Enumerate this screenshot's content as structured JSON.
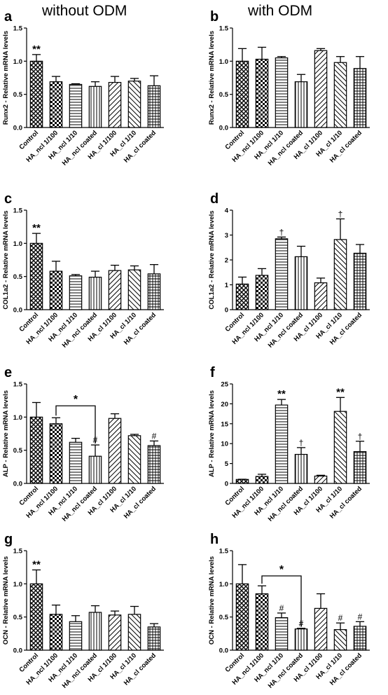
{
  "column_titles": {
    "left": "without ODM",
    "right": "with ODM"
  },
  "categories": [
    "Control",
    "HA_ncl 1/100",
    "HA_ncl 1/10",
    "HA_ncl coated",
    "HA_cl 1/100",
    "HA_cl 1/10",
    "HA_cl coated"
  ],
  "chart_data": [
    {
      "type": "bar",
      "panel": "a",
      "ylabel": "Runx2 - Relative mRNA levels",
      "ylim": [
        0,
        1.5
      ],
      "yticks": [
        "0.0",
        "0.5",
        "1.0",
        "1.5"
      ],
      "ytick_values": [
        0,
        0.5,
        1.0,
        1.5
      ],
      "values": [
        1.0,
        0.69,
        0.65,
        0.62,
        0.68,
        0.7,
        0.63
      ],
      "errors": [
        0.1,
        0.08,
        0.01,
        0.07,
        0.09,
        0.04,
        0.15
      ],
      "annotations": [
        {
          "bar": 0,
          "text": "**"
        }
      ],
      "brackets": []
    },
    {
      "type": "bar",
      "panel": "b",
      "ylabel": "Runx2 - Relative mRNA levels",
      "ylim": [
        0,
        1.5
      ],
      "yticks": [
        "0.0",
        "0.5",
        "1.0",
        "1.5"
      ],
      "ytick_values": [
        0,
        0.5,
        1.0,
        1.5
      ],
      "values": [
        1.0,
        1.03,
        1.05,
        0.69,
        1.16,
        0.98,
        0.89
      ],
      "errors": [
        0.19,
        0.18,
        0.02,
        0.11,
        0.03,
        0.09,
        0.18
      ],
      "annotations": [],
      "brackets": []
    },
    {
      "type": "bar",
      "panel": "c",
      "ylabel": "COL1a2 - Relative mRNA levels",
      "ylim": [
        0,
        1.5
      ],
      "yticks": [
        "0.0",
        "0.5",
        "1.0",
        "1.5"
      ],
      "ytick_values": [
        0,
        0.5,
        1.0,
        1.5
      ],
      "values": [
        1.0,
        0.58,
        0.51,
        0.49,
        0.59,
        0.6,
        0.54
      ],
      "errors": [
        0.15,
        0.15,
        0.02,
        0.09,
        0.08,
        0.06,
        0.14
      ],
      "annotations": [
        {
          "bar": 0,
          "text": "**"
        }
      ],
      "brackets": []
    },
    {
      "type": "bar",
      "panel": "d",
      "ylabel": "COL1a2 - Relative mRNA levels",
      "ylim": [
        0,
        4
      ],
      "yticks": [
        "0",
        "1",
        "2",
        "3",
        "4"
      ],
      "ytick_values": [
        0,
        1,
        2,
        3,
        4
      ],
      "values": [
        1.03,
        1.38,
        2.85,
        2.13,
        1.08,
        2.82,
        2.27
      ],
      "errors": [
        0.28,
        0.27,
        0.07,
        0.42,
        0.19,
        0.83,
        0.35
      ],
      "annotations": [
        {
          "bar": 2,
          "text": "†"
        },
        {
          "bar": 5,
          "text": "†"
        }
      ],
      "brackets": []
    },
    {
      "type": "bar",
      "panel": "e",
      "ylabel": "ALP - Relative mRNA levels",
      "ylim": [
        0,
        1.5
      ],
      "yticks": [
        "0.0",
        "0.5",
        "1.0",
        "1.5"
      ],
      "ytick_values": [
        0,
        0.5,
        1.0,
        1.5
      ],
      "values": [
        1.0,
        0.9,
        0.62,
        0.41,
        0.98,
        0.72,
        0.57
      ],
      "errors": [
        0.22,
        0.09,
        0.06,
        0.17,
        0.07,
        0.02,
        0.07
      ],
      "annotations": [
        {
          "bar": 3,
          "text": "#"
        },
        {
          "bar": 6,
          "text": "#"
        }
      ],
      "brackets": [
        {
          "from": 1,
          "to": 3,
          "y": 1.17,
          "text": "*"
        }
      ]
    },
    {
      "type": "bar",
      "panel": "f",
      "ylabel": "ALP - Relative mRNA levels",
      "ylim": [
        0,
        25
      ],
      "yticks": [
        "0",
        "5",
        "10",
        "15",
        "20",
        "25"
      ],
      "ytick_values": [
        0,
        5,
        10,
        15,
        20,
        25
      ],
      "values": [
        1.0,
        1.75,
        19.7,
        7.3,
        1.85,
        18.1,
        8.0
      ],
      "errors": [
        0.05,
        0.55,
        1.4,
        1.7,
        0.2,
        3.5,
        2.6
      ],
      "annotations": [
        {
          "bar": 2,
          "text": "**"
        },
        {
          "bar": 3,
          "text": "†"
        },
        {
          "bar": 5,
          "text": "**"
        },
        {
          "bar": 6,
          "text": "†"
        }
      ],
      "brackets": []
    },
    {
      "type": "bar",
      "panel": "g",
      "ylabel": "OCN - Relative mRNA levels",
      "ylim": [
        0,
        1.5
      ],
      "yticks": [
        "0.0",
        "0.5",
        "1.0",
        "1.5"
      ],
      "ytick_values": [
        0,
        0.5,
        1.0,
        1.5
      ],
      "values": [
        1.0,
        0.54,
        0.43,
        0.57,
        0.53,
        0.54,
        0.35
      ],
      "errors": [
        0.21,
        0.14,
        0.09,
        0.1,
        0.06,
        0.12,
        0.05
      ],
      "annotations": [
        {
          "bar": 0,
          "text": "**"
        }
      ],
      "brackets": []
    },
    {
      "type": "bar",
      "panel": "h",
      "ylabel": "OCN - Relative mRNA levels",
      "ylim": [
        0,
        1.5
      ],
      "yticks": [
        "0.0",
        "0.5",
        "1.0",
        "1.5"
      ],
      "ytick_values": [
        0,
        0.5,
        1.0,
        1.5
      ],
      "values": [
        1.0,
        0.85,
        0.49,
        0.32,
        0.63,
        0.31,
        0.36
      ],
      "errors": [
        0.29,
        0.12,
        0.07,
        0.01,
        0.22,
        0.1,
        0.07
      ],
      "annotations": [
        {
          "bar": 2,
          "text": "#"
        },
        {
          "bar": 3,
          "text": "#"
        },
        {
          "bar": 5,
          "text": "#"
        },
        {
          "bar": 6,
          "text": "#"
        }
      ],
      "brackets": [
        {
          "from": 1,
          "to": 3,
          "y": 1.12,
          "text": "*"
        }
      ]
    }
  ]
}
